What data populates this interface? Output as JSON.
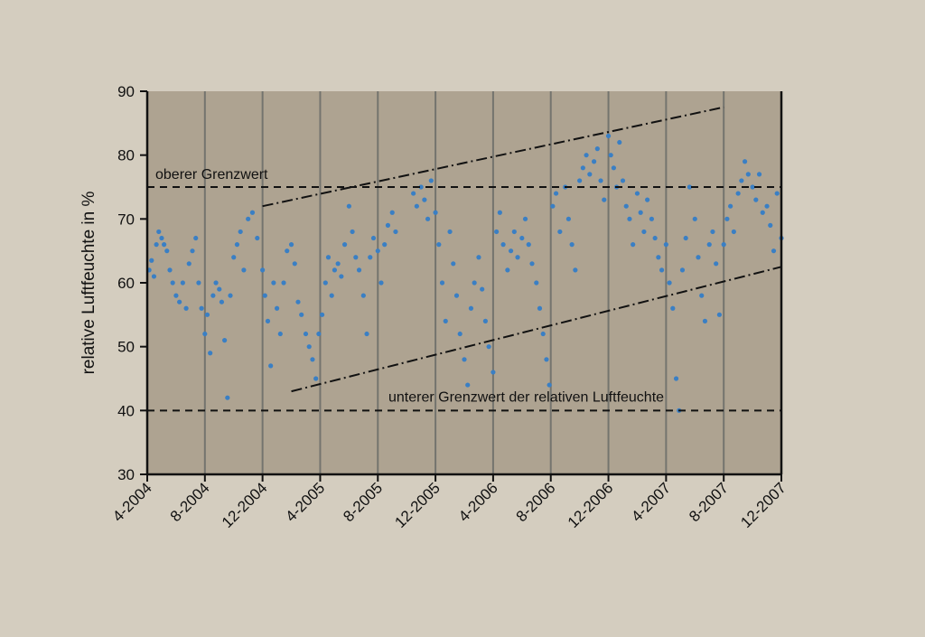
{
  "chart_data": {
    "type": "scatter",
    "ylabel": "relative Luftfeuchte in %",
    "xlabel": "",
    "ylim": [
      30,
      90
    ],
    "yticks": [
      30,
      40,
      50,
      60,
      70,
      80,
      90
    ],
    "xlim": [
      "2004-04",
      "2007-12"
    ],
    "xtick_labels": [
      "4-2004",
      "8-2004",
      "12-2004",
      "4-2005",
      "8-2005",
      "12-2005",
      "4-2006",
      "8-2006",
      "12-2006",
      "4-2007",
      "8-2007",
      "12-2007"
    ],
    "grid": "vertical lines at each month tick",
    "colors": {
      "points": "#3a7fc4",
      "plot_background": "#aea391",
      "page_background": "#d4cdbf",
      "grid": "#74746e"
    },
    "reference_lines": [
      {
        "label": "oberer Grenzwert",
        "y": 75,
        "style": "dashed"
      },
      {
        "label": "unterer Grenzwert der relativen Luftfeuchte",
        "y": 40,
        "style": "dashed"
      }
    ],
    "trend_lines": [
      {
        "style": "dash-dot",
        "points": [
          [
            "2004-12",
            72
          ],
          [
            "2007-08",
            87.5
          ]
        ]
      },
      {
        "style": "dash-dot",
        "points": [
          [
            "2005-02",
            43
          ],
          [
            "2007-12",
            62.5
          ]
        ]
      }
    ],
    "series": [
      {
        "values": [
          [
            "2004-04-05",
            62
          ],
          [
            "2004-04-10",
            63.5
          ],
          [
            "2004-04-15",
            61
          ],
          [
            "2004-04-20",
            66
          ],
          [
            "2004-04-25",
            68
          ],
          [
            "2004-05-01",
            67
          ],
          [
            "2004-05-06",
            66
          ],
          [
            "2004-05-12",
            65
          ],
          [
            "2004-05-18",
            62
          ],
          [
            "2004-05-24",
            60
          ],
          [
            "2004-06-01",
            58
          ],
          [
            "2004-06-08",
            57
          ],
          [
            "2004-06-15",
            60
          ],
          [
            "2004-06-22",
            56
          ],
          [
            "2004-06-28",
            63
          ],
          [
            "2004-07-05",
            65
          ],
          [
            "2004-07-12",
            67
          ],
          [
            "2004-07-18",
            60
          ],
          [
            "2004-07-24",
            56
          ],
          [
            "2004-08-01",
            52
          ],
          [
            "2004-08-06",
            55
          ],
          [
            "2004-08-12",
            49
          ],
          [
            "2004-08-18",
            58
          ],
          [
            "2004-08-24",
            60
          ],
          [
            "2004-09-01",
            59
          ],
          [
            "2004-09-06",
            57
          ],
          [
            "2004-09-12",
            51
          ],
          [
            "2004-09-18",
            42
          ],
          [
            "2004-09-24",
            58
          ],
          [
            "2004-10-01",
            64
          ],
          [
            "2004-10-08",
            66
          ],
          [
            "2004-10-15",
            68
          ],
          [
            "2004-10-22",
            62
          ],
          [
            "2004-11-01",
            70
          ],
          [
            "2004-11-10",
            71
          ],
          [
            "2004-11-20",
            67
          ],
          [
            "2004-12-01",
            62
          ],
          [
            "2004-12-06",
            58
          ],
          [
            "2004-12-12",
            54
          ],
          [
            "2004-12-18",
            47
          ],
          [
            "2004-12-24",
            60
          ],
          [
            "2005-01-01",
            56
          ],
          [
            "2005-01-08",
            52
          ],
          [
            "2005-01-15",
            60
          ],
          [
            "2005-01-22",
            65
          ],
          [
            "2005-02-01",
            66
          ],
          [
            "2005-02-08",
            63
          ],
          [
            "2005-02-15",
            57
          ],
          [
            "2005-02-22",
            55
          ],
          [
            "2005-03-01",
            52
          ],
          [
            "2005-03-08",
            50
          ],
          [
            "2005-03-15",
            48
          ],
          [
            "2005-03-22",
            45
          ],
          [
            "2005-03-28",
            52
          ],
          [
            "2005-04-05",
            55
          ],
          [
            "2005-04-12",
            60
          ],
          [
            "2005-04-18",
            64
          ],
          [
            "2005-04-25",
            58
          ],
          [
            "2005-05-01",
            62
          ],
          [
            "2005-05-08",
            63
          ],
          [
            "2005-05-15",
            61
          ],
          [
            "2005-05-22",
            66
          ],
          [
            "2005-06-01",
            72
          ],
          [
            "2005-06-08",
            68
          ],
          [
            "2005-06-15",
            64
          ],
          [
            "2005-06-22",
            62
          ],
          [
            "2005-07-01",
            58
          ],
          [
            "2005-07-08",
            52
          ],
          [
            "2005-07-15",
            64
          ],
          [
            "2005-07-22",
            67
          ],
          [
            "2005-08-01",
            65
          ],
          [
            "2005-08-08",
            60
          ],
          [
            "2005-08-15",
            66
          ],
          [
            "2005-08-22",
            69
          ],
          [
            "2005-09-01",
            71
          ],
          [
            "2005-09-08",
            68
          ],
          [
            "2005-10-15",
            74
          ],
          [
            "2005-10-22",
            72
          ],
          [
            "2005-11-01",
            75
          ],
          [
            "2005-11-08",
            73
          ],
          [
            "2005-11-15",
            70
          ],
          [
            "2005-11-22",
            76
          ],
          [
            "2005-12-01",
            71
          ],
          [
            "2005-12-08",
            66
          ],
          [
            "2005-12-15",
            60
          ],
          [
            "2005-12-22",
            54
          ],
          [
            "2006-01-01",
            68
          ],
          [
            "2006-01-08",
            63
          ],
          [
            "2006-01-15",
            58
          ],
          [
            "2006-01-22",
            52
          ],
          [
            "2006-02-01",
            48
          ],
          [
            "2006-02-08",
            44
          ],
          [
            "2006-02-15",
            56
          ],
          [
            "2006-02-22",
            60
          ],
          [
            "2006-03-01",
            64
          ],
          [
            "2006-03-08",
            59
          ],
          [
            "2006-03-15",
            54
          ],
          [
            "2006-03-22",
            50
          ],
          [
            "2006-04-01",
            46
          ],
          [
            "2006-04-08",
            68
          ],
          [
            "2006-04-15",
            71
          ],
          [
            "2006-04-22",
            66
          ],
          [
            "2006-05-01",
            62
          ],
          [
            "2006-05-08",
            65
          ],
          [
            "2006-05-15",
            68
          ],
          [
            "2006-05-22",
            64
          ],
          [
            "2006-06-01",
            67
          ],
          [
            "2006-06-08",
            70
          ],
          [
            "2006-06-15",
            66
          ],
          [
            "2006-06-22",
            63
          ],
          [
            "2006-07-01",
            60
          ],
          [
            "2006-07-08",
            56
          ],
          [
            "2006-07-15",
            52
          ],
          [
            "2006-07-22",
            48
          ],
          [
            "2006-07-28",
            44
          ],
          [
            "2006-08-05",
            72
          ],
          [
            "2006-08-12",
            74
          ],
          [
            "2006-08-20",
            68
          ],
          [
            "2006-09-01",
            75
          ],
          [
            "2006-09-08",
            70
          ],
          [
            "2006-09-15",
            66
          ],
          [
            "2006-09-22",
            62
          ],
          [
            "2006-10-01",
            76
          ],
          [
            "2006-10-08",
            78
          ],
          [
            "2006-10-15",
            80
          ],
          [
            "2006-10-22",
            77
          ],
          [
            "2006-11-01",
            79
          ],
          [
            "2006-11-08",
            81
          ],
          [
            "2006-11-15",
            76
          ],
          [
            "2006-11-22",
            73
          ],
          [
            "2006-12-01",
            83
          ],
          [
            "2006-12-06",
            80
          ],
          [
            "2006-12-12",
            78
          ],
          [
            "2006-12-18",
            75
          ],
          [
            "2006-12-24",
            82
          ],
          [
            "2007-01-01",
            76
          ],
          [
            "2007-01-08",
            72
          ],
          [
            "2007-01-15",
            70
          ],
          [
            "2007-01-22",
            66
          ],
          [
            "2007-02-01",
            74
          ],
          [
            "2007-02-08",
            71
          ],
          [
            "2007-02-15",
            68
          ],
          [
            "2007-02-22",
            73
          ],
          [
            "2007-03-01",
            70
          ],
          [
            "2007-03-08",
            67
          ],
          [
            "2007-03-15",
            64
          ],
          [
            "2007-03-22",
            62
          ],
          [
            "2007-04-01",
            66
          ],
          [
            "2007-04-08",
            60
          ],
          [
            "2007-04-15",
            56
          ],
          [
            "2007-04-22",
            45
          ],
          [
            "2007-04-28",
            40
          ],
          [
            "2007-05-05",
            62
          ],
          [
            "2007-05-12",
            67
          ],
          [
            "2007-05-20",
            75
          ],
          [
            "2007-06-01",
            70
          ],
          [
            "2007-06-08",
            64
          ],
          [
            "2007-06-15",
            58
          ],
          [
            "2007-06-22",
            54
          ],
          [
            "2007-07-01",
            66
          ],
          [
            "2007-07-08",
            68
          ],
          [
            "2007-07-15",
            63
          ],
          [
            "2007-07-22",
            55
          ],
          [
            "2007-08-01",
            66
          ],
          [
            "2007-08-08",
            70
          ],
          [
            "2007-08-15",
            72
          ],
          [
            "2007-08-22",
            68
          ],
          [
            "2007-09-01",
            74
          ],
          [
            "2007-09-08",
            76
          ],
          [
            "2007-09-15",
            79
          ],
          [
            "2007-09-22",
            77
          ],
          [
            "2007-10-01",
            75
          ],
          [
            "2007-10-08",
            73
          ],
          [
            "2007-10-15",
            77
          ],
          [
            "2007-10-22",
            71
          ],
          [
            "2007-11-01",
            72
          ],
          [
            "2007-11-08",
            69
          ],
          [
            "2007-11-15",
            65
          ],
          [
            "2007-11-22",
            74
          ],
          [
            "2007-12-01",
            67
          ]
        ]
      }
    ]
  }
}
